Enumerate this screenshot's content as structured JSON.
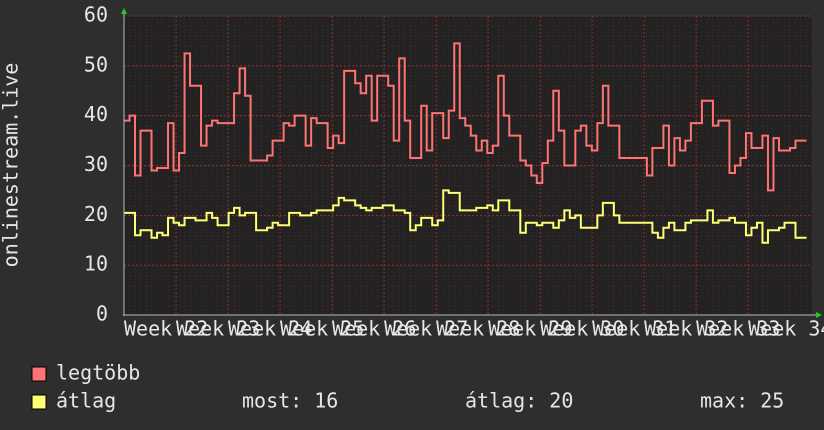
{
  "chart_data": {
    "type": "step",
    "y_label": "onlinestream.live",
    "ylim": [
      0,
      60
    ],
    "yticks": [
      0,
      10,
      20,
      30,
      40,
      50,
      60
    ],
    "xlim": [
      0,
      125
    ],
    "xticks": [
      {
        "value": 0,
        "label": "Week 22"
      },
      {
        "value": 9.45,
        "label": "Week 23"
      },
      {
        "value": 18.9,
        "label": "Week 24"
      },
      {
        "value": 28.35,
        "label": "Week 25"
      },
      {
        "value": 37.8,
        "label": "Week 26"
      },
      {
        "value": 47.25,
        "label": "Week 27"
      },
      {
        "value": 56.7,
        "label": "Week 28"
      },
      {
        "value": 66.15,
        "label": "Week 29"
      },
      {
        "value": 75.6,
        "label": "Week 30"
      },
      {
        "value": 85.05,
        "label": "Week 31"
      },
      {
        "value": 94.5,
        "label": "Week 32"
      },
      {
        "value": 103.95,
        "label": "Week 33"
      },
      {
        "value": 113.4,
        "label": "Week 34"
      }
    ],
    "grid": true,
    "series": [
      {
        "name": "legtöbb",
        "color": "#ff7373",
        "values": [
          39,
          40,
          28,
          37,
          37,
          29,
          29.5,
          29.5,
          38.5,
          29,
          32.5,
          52.5,
          46,
          46,
          34,
          38,
          39,
          38.5,
          38.5,
          38.5,
          44.5,
          49.5,
          44,
          31,
          31,
          31,
          32,
          35,
          35,
          38.5,
          38,
          40,
          40,
          34,
          39.5,
          38.5,
          38.5,
          33.5,
          36,
          34.5,
          49,
          49,
          46.5,
          44.5,
          48,
          39,
          48,
          48,
          46,
          35,
          51.5,
          39,
          31.5,
          31.5,
          42,
          33,
          40.5,
          40.5,
          35.5,
          41,
          54.5,
          39.5,
          38,
          36,
          33,
          35,
          32.5,
          34,
          48,
          40,
          36,
          36,
          31,
          30,
          28,
          26.5,
          30.5,
          35,
          45,
          37,
          30,
          30,
          37,
          38,
          34,
          33,
          38.5,
          46,
          38,
          38,
          31.5,
          31.5,
          31.5,
          31.5,
          31.5,
          28,
          33.5,
          33.5,
          38,
          30,
          35.5,
          33,
          35,
          38.5,
          38.5,
          43,
          43,
          38,
          39,
          39,
          28.5,
          30,
          31.5,
          36.5,
          33.5,
          33.5,
          36,
          25,
          35.5,
          33,
          33,
          33.5,
          35,
          35
        ]
      },
      {
        "name": "átlag",
        "color": "#ffff73",
        "values": [
          20.5,
          20.5,
          16,
          17,
          17,
          15.5,
          16.5,
          16,
          19.5,
          18.5,
          18,
          19.5,
          19.5,
          19,
          19,
          20.5,
          19.5,
          18,
          18,
          20.5,
          21.5,
          20,
          20.5,
          20.5,
          17,
          17,
          17.5,
          18.5,
          18,
          18,
          20.5,
          20.5,
          20,
          20,
          20.5,
          21,
          21,
          21,
          22,
          23.5,
          23,
          23,
          22,
          21.5,
          21,
          21.5,
          21.5,
          22,
          22,
          21,
          21,
          20.5,
          17,
          18,
          19.5,
          19.5,
          18,
          19,
          25,
          24.5,
          24.5,
          21,
          21,
          21,
          21.5,
          21.5,
          22,
          21,
          23,
          23,
          21,
          21,
          16.5,
          18.5,
          18.5,
          18,
          18.5,
          18.5,
          17.5,
          19,
          21,
          19.5,
          20,
          17.5,
          17.5,
          17.5,
          20,
          22.5,
          22.5,
          20,
          18.5,
          18.5,
          18.5,
          18.5,
          18.5,
          18.5,
          16.5,
          15.5,
          17.5,
          18.5,
          17,
          17,
          18.5,
          19,
          19,
          19,
          21,
          18.5,
          19,
          19,
          19.5,
          18.5,
          18.5,
          16,
          17.5,
          18.5,
          14.5,
          17,
          17,
          17.5,
          18.5,
          18.5,
          15.5,
          15.5
        ]
      }
    ],
    "stats": [
      "most: 16",
      "átlag: 20",
      "max: 25"
    ]
  }
}
